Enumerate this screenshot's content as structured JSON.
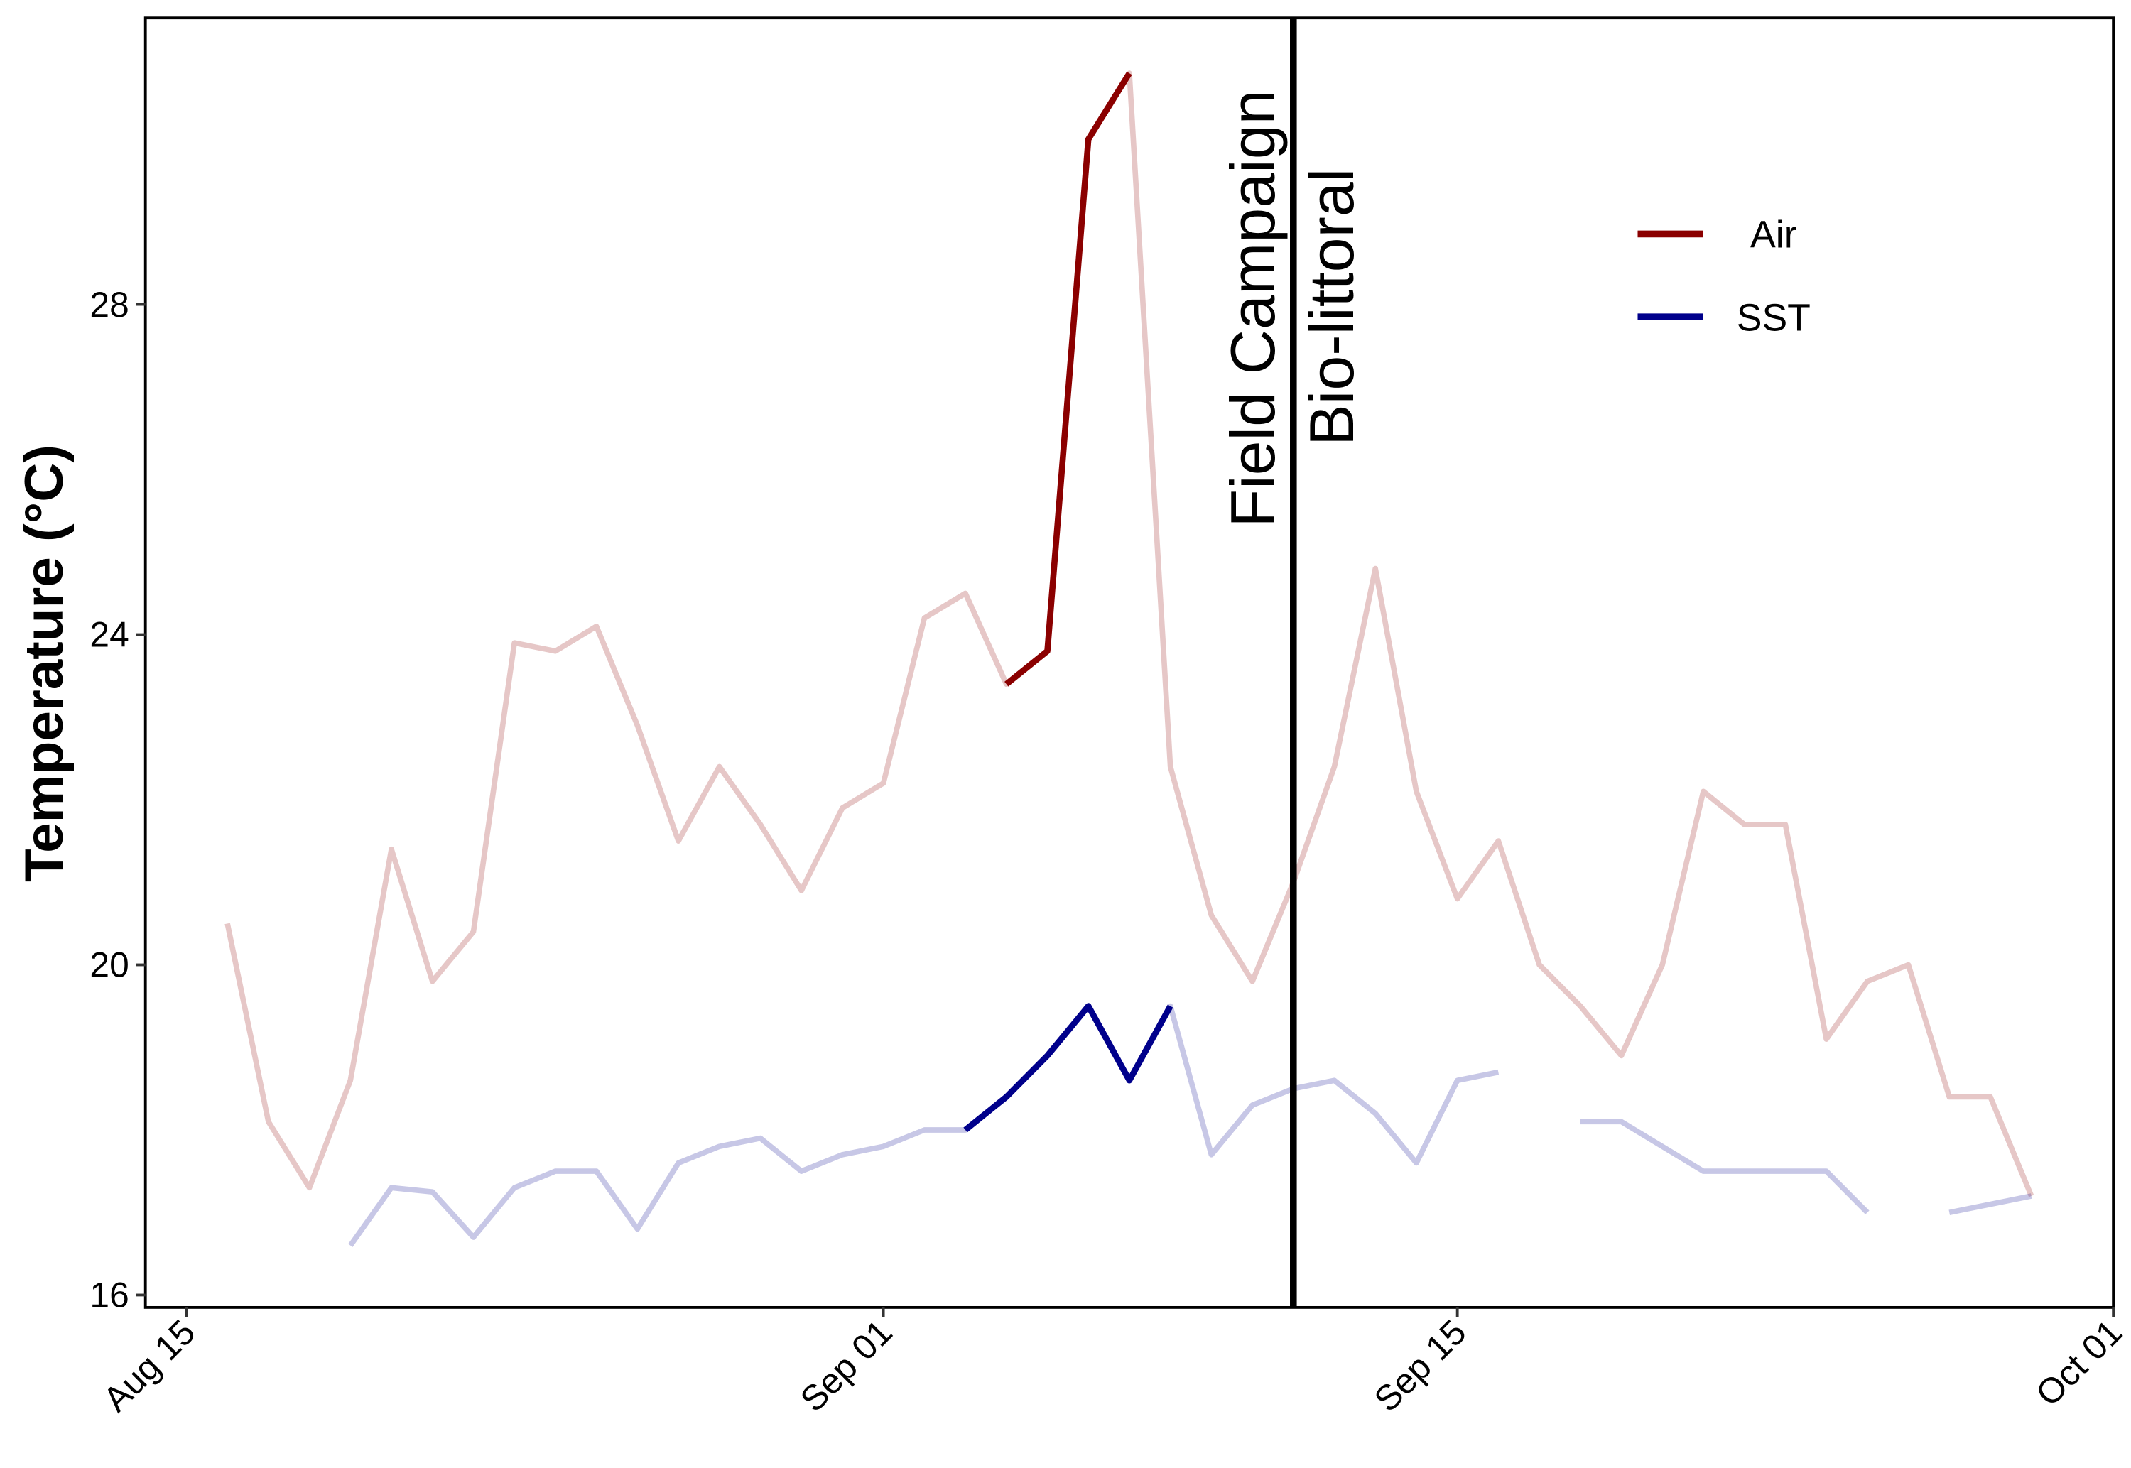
{
  "chart_data": {
    "type": "line",
    "ylabel": "Temperature (°C)",
    "x": [
      "Aug 16",
      "Aug 17",
      "Aug 18",
      "Aug 19",
      "Aug 20",
      "Aug 21",
      "Aug 22",
      "Aug 23",
      "Aug 24",
      "Aug 25",
      "Aug 26",
      "Aug 27",
      "Aug 28",
      "Aug 29",
      "Aug 30",
      "Aug 31",
      "Sep 01",
      "Sep 02",
      "Sep 03",
      "Sep 04",
      "Sep 05",
      "Sep 06",
      "Sep 07",
      "Sep 08",
      "Sep 09",
      "Sep 10",
      "Sep 11",
      "Sep 12",
      "Sep 13",
      "Sep 14",
      "Sep 15",
      "Sep 16",
      "Sep 17",
      "Sep 18",
      "Sep 19",
      "Sep 20",
      "Sep 21",
      "Sep 22",
      "Sep 23",
      "Sep 24",
      "Sep 25",
      "Sep 26",
      "Sep 27",
      "Sep 28",
      "Sep 29"
    ],
    "series": [
      {
        "name": "Air",
        "color": "#8b0000",
        "highlight": [
          "Sep 04",
          "Sep 07"
        ],
        "values": [
          20.5,
          18.1,
          17.3,
          18.6,
          21.4,
          19.8,
          20.4,
          23.9,
          23.8,
          24.1,
          22.9,
          21.5,
          22.4,
          21.7,
          20.9,
          21.9,
          22.2,
          24.2,
          24.5,
          23.4,
          23.8,
          30.0,
          30.8,
          22.4,
          20.6,
          19.8,
          21.0,
          22.4,
          24.8,
          22.1,
          20.8,
          21.5,
          20.0,
          19.5,
          18.9,
          20.0,
          22.1,
          21.7,
          21.7,
          19.1,
          19.8,
          20.0,
          18.4,
          18.4,
          17.2
        ]
      },
      {
        "name": "SST",
        "color": "#00008b",
        "highlight": [
          "Sep 03",
          "Sep 08"
        ],
        "values": [
          null,
          null,
          null,
          16.6,
          17.3,
          17.25,
          16.7,
          17.3,
          17.5,
          17.5,
          16.8,
          17.6,
          17.8,
          17.9,
          17.5,
          17.7,
          17.8,
          18.0,
          18.0,
          18.4,
          18.9,
          19.5,
          18.6,
          19.5,
          17.7,
          18.3,
          18.5,
          18.6,
          18.2,
          17.6,
          18.6,
          18.7,
          null,
          18.1,
          18.1,
          17.8,
          17.5,
          17.5,
          17.5,
          17.5,
          17.0,
          null,
          17.0,
          17.1,
          17.2
        ]
      }
    ],
    "vline": {
      "x": "Sep 11",
      "labels": [
        "Field Campaign",
        "Bio-littoral"
      ]
    },
    "xlim": [
      "Aug 14",
      "Oct 01"
    ],
    "xticks": [
      "Aug 15",
      "Sep 01",
      "Sep 15",
      "Oct 01"
    ],
    "ylim": [
      15.85,
      31.47
    ],
    "yticks": [
      16,
      20,
      24,
      28
    ],
    "grid": false,
    "legend": "top-right"
  }
}
